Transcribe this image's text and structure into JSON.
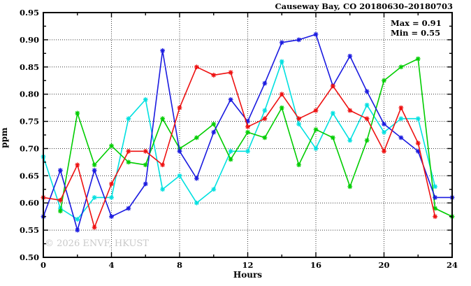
{
  "title": "Causeway Bay, CO 20180630–20180703",
  "annotation": {
    "max_label": "Max = 0.91",
    "min_label": "Min = 0.55"
  },
  "watermark": "© 2026 ENVF, HKUST",
  "chart_data": {
    "type": "line",
    "title": "Causeway Bay, CO 20180630–20180703",
    "xlabel": "Hours",
    "ylabel": "ppm",
    "xlim": [
      0,
      24
    ],
    "ylim": [
      0.5,
      0.95
    ],
    "grid": "dotted lines at major ticks, full box with mirrored ticks",
    "legend_position": "none",
    "max_value": 0.91,
    "min_value": 0.55,
    "x_tick_values": [
      0,
      4,
      8,
      12,
      16,
      20,
      24
    ],
    "x_tick_labels": [
      "0",
      "4",
      "8",
      "12",
      "16",
      "20",
      "24"
    ],
    "x_minor_tick_values": [
      2,
      6,
      10,
      14,
      18,
      22
    ],
    "y_tick_values": [
      0.5,
      0.55,
      0.6,
      0.65,
      0.7,
      0.75,
      0.8,
      0.85,
      0.9,
      0.95
    ],
    "y_tick_labels": [
      "0.50",
      "0.55",
      "0.60",
      "0.65",
      "0.70",
      "0.75",
      "0.80",
      "0.85",
      "0.90",
      "0.95"
    ],
    "y_minor_tick_values": [
      0.525,
      0.575,
      0.625,
      0.675,
      0.725,
      0.775,
      0.825,
      0.875,
      0.925
    ],
    "marker": "asterisk",
    "x": [
      0,
      1,
      2,
      3,
      4,
      5,
      6,
      7,
      8,
      9,
      10,
      11,
      12,
      13,
      14,
      15,
      16,
      17,
      18,
      19,
      20,
      21,
      22,
      23,
      24
    ],
    "series": [
      {
        "name": "cyan-series",
        "color": "#00e0e0",
        "values": [
          0.685,
          0.59,
          0.57,
          0.61,
          0.61,
          0.755,
          0.79,
          0.625,
          0.65,
          0.6,
          0.625,
          0.695,
          0.695,
          0.77,
          0.86,
          0.745,
          0.7,
          0.765,
          0.715,
          0.78,
          0.73,
          0.755,
          0.755,
          0.63,
          null
        ]
      },
      {
        "name": "green-series",
        "color": "#00cd00",
        "values": [
          null,
          0.585,
          0.765,
          0.67,
          0.705,
          0.675,
          0.67,
          0.755,
          0.7,
          0.72,
          0.745,
          0.68,
          0.73,
          0.72,
          0.775,
          0.67,
          0.735,
          0.72,
          0.63,
          0.715,
          0.825,
          0.85,
          0.865,
          0.59,
          0.575
        ]
      },
      {
        "name": "blue-series",
        "color": "#1a1ae0",
        "values": [
          0.575,
          0.66,
          0.55,
          0.66,
          0.575,
          0.59,
          0.635,
          0.88,
          0.695,
          0.645,
          0.73,
          0.79,
          0.75,
          0.82,
          0.895,
          0.9,
          0.91,
          0.815,
          0.87,
          0.805,
          0.745,
          0.72,
          0.695,
          0.61,
          0.61
        ]
      },
      {
        "name": "red-series",
        "color": "#ee1111",
        "values": [
          0.61,
          0.605,
          0.67,
          0.555,
          0.635,
          0.695,
          0.695,
          0.67,
          0.775,
          0.85,
          0.835,
          0.84,
          0.74,
          0.755,
          0.8,
          0.755,
          0.77,
          0.815,
          0.77,
          0.755,
          0.695,
          0.775,
          0.71,
          0.575,
          null
        ]
      }
    ]
  }
}
